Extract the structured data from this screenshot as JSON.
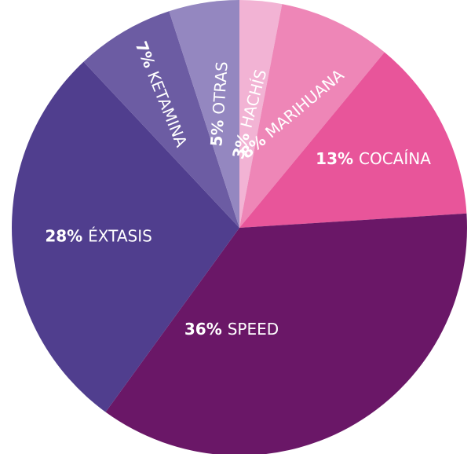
{
  "chart_data": {
    "type": "pie",
    "title": "",
    "start_angle_deg": 0,
    "slices": [
      {
        "label": "HACHÍS",
        "pct_label": "3%",
        "value": 3,
        "color": "#f2b3d4"
      },
      {
        "label": "MARIHUANA",
        "pct_label": "8%",
        "value": 8,
        "color": "#ee86b7"
      },
      {
        "label": "COCAÍNA",
        "pct_label": "13%",
        "value": 13,
        "color": "#e8559a"
      },
      {
        "label": "SPEED",
        "pct_label": "36%",
        "value": 36,
        "color": "#6a1767"
      },
      {
        "label": "ÉXTASIS",
        "pct_label": "28%",
        "value": 28,
        "color": "#503e8e"
      },
      {
        "label": "KETAMINA",
        "pct_label": "7%",
        "value": 7,
        "color": "#6c5ca3"
      },
      {
        "label": "OTRAS",
        "pct_label": "5%",
        "value": 5,
        "color": "#9487c0"
      }
    ]
  }
}
